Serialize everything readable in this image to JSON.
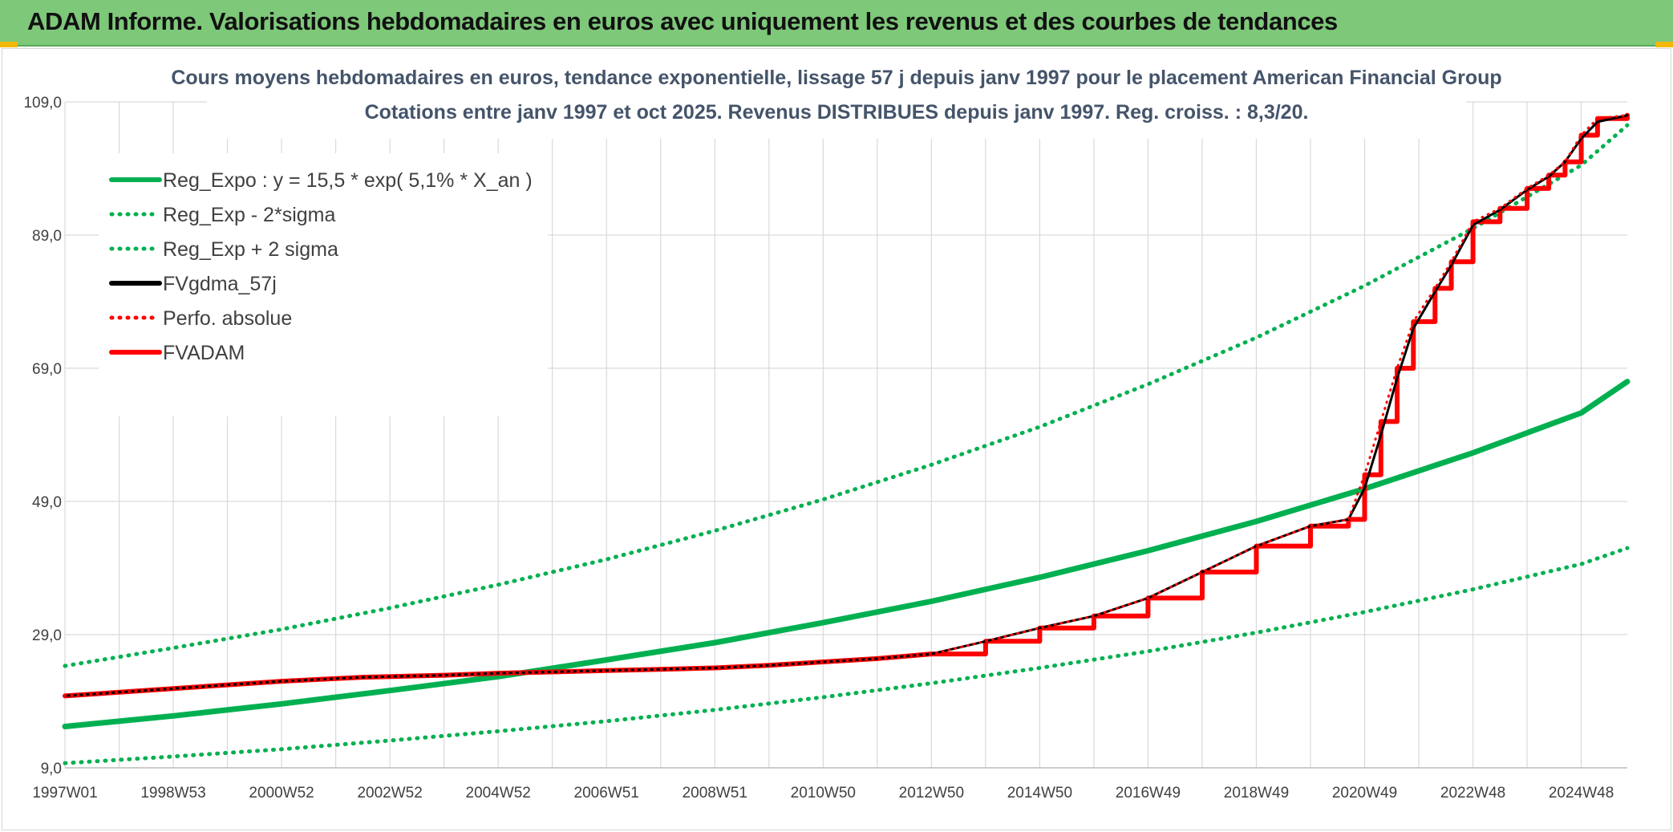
{
  "header": {
    "title": "ADAM Informe. Valorisations hebdomadaires en euros avec uniquement les revenus et des courbes de tendances"
  },
  "colors": {
    "banner": "#7ec87a",
    "green": "#00b050",
    "red": "#ff0000",
    "black": "#000000",
    "grid": "#d9d9d9"
  },
  "chart_data": {
    "type": "line",
    "title_line1": "Cours moyens hebdomadaires en euros, tendance exponentielle, lissage 57 j depuis janv 1997 pour le placement American Financial Group",
    "title_line2": "Cotations entre janv 1997 et oct 2025. Revenus DISTRIBUES depuis janv 1997. Reg. croiss. : 8,3/20.",
    "y_ticks": [
      "109,0",
      "89,0",
      "69,0",
      "49,0",
      "29,0",
      "9,0"
    ],
    "y_tick_values": [
      109,
      89,
      69,
      49,
      29,
      9
    ],
    "ylim": [
      9,
      109
    ],
    "x_ticks": [
      "1997W01",
      "1998W53",
      "2000W52",
      "2002W52",
      "2004W52",
      "2006W51",
      "2008W51",
      "2010W50",
      "2012W50",
      "2014W50",
      "2016W49",
      "2018W49",
      "2020W49",
      "2022W48",
      "2024W48"
    ],
    "x_tick_years": [
      1997,
      1999,
      2001,
      2003,
      2005,
      2007,
      2009,
      2011,
      2013,
      2015,
      2017,
      2019,
      2021,
      2023,
      2025
    ],
    "xlim": [
      1997,
      2025.85
    ],
    "legend": [
      {
        "label": "Reg_Expo : y = 15,5 * exp( 5,1% *  X_an )",
        "color": "#00b050",
        "style": "solid"
      },
      {
        "label": "Reg_Exp - 2*sigma",
        "color": "#00b050",
        "style": "dotted"
      },
      {
        "label": "Reg_Exp + 2 sigma",
        "color": "#00b050",
        "style": "dotted"
      },
      {
        "label": "FVgdma_57j",
        "color": "#000000",
        "style": "solid"
      },
      {
        "label": "Perfo. absolue",
        "color": "#ff0000",
        "style": "dotted"
      },
      {
        "label": "FVADAM",
        "color": "#ff0000",
        "style": "solid"
      }
    ],
    "series": [
      {
        "name": "Reg_Expo",
        "x": [
          1997,
          1999,
          2001,
          2003,
          2005,
          2007,
          2009,
          2011,
          2013,
          2015,
          2017,
          2019,
          2021,
          2023,
          2025,
          2025.85
        ],
        "values": [
          15.2,
          16.8,
          18.6,
          20.6,
          22.7,
          25.2,
          27.8,
          30.8,
          34.0,
          37.6,
          41.6,
          46.0,
          50.9,
          56.3,
          62.3,
          67.0
        ]
      },
      {
        "name": "Reg_Exp - 2*sigma",
        "x": [
          1997,
          1999,
          2001,
          2003,
          2005,
          2007,
          2009,
          2011,
          2013,
          2015,
          2017,
          2019,
          2021,
          2023,
          2025,
          2025.85
        ],
        "values": [
          9.7,
          10.7,
          11.8,
          13.1,
          14.5,
          16.0,
          17.7,
          19.6,
          21.7,
          24.0,
          26.5,
          29.3,
          32.4,
          35.8,
          39.6,
          42.0
        ]
      },
      {
        "name": "Reg_Exp + 2 sigma",
        "x": [
          1997,
          1999,
          2001,
          2003,
          2005,
          2007,
          2009,
          2011,
          2013,
          2015,
          2017,
          2019,
          2021,
          2023,
          2025,
          2025.85
        ],
        "values": [
          24.3,
          27.0,
          29.8,
          33.0,
          36.5,
          40.3,
          44.6,
          49.3,
          54.5,
          60.2,
          66.6,
          73.6,
          81.4,
          90.0,
          99.5,
          105.5
        ]
      },
      {
        "name": "FVADAM",
        "x": [
          1997,
          1999,
          2001,
          2002.5,
          2004,
          2005,
          2006,
          2007,
          2008,
          2009,
          2010,
          2011,
          2012,
          2013,
          2014,
          2015,
          2016,
          2017,
          2018,
          2019,
          2020,
          2020.7,
          2021,
          2021.3,
          2021.6,
          2021.9,
          2022.3,
          2022.6,
          2023,
          2023.5,
          2024,
          2024.4,
          2024.7,
          2025,
          2025.3,
          2025.85
        ],
        "values": [
          19.8,
          20.9,
          22.0,
          22.6,
          22.9,
          23.2,
          23.4,
          23.6,
          23.8,
          24.0,
          24.4,
          24.9,
          25.4,
          26.1,
          28.0,
          30.0,
          31.8,
          34.5,
          38.4,
          42.3,
          45.3,
          46.3,
          53.0,
          61.0,
          69.0,
          76.0,
          81.0,
          85.0,
          91.0,
          93.0,
          96.0,
          98.0,
          100.0,
          104.0,
          106.5,
          107.0
        ]
      },
      {
        "name": "FVgdma_57j",
        "x": [
          1997,
          1999,
          2001,
          2002.5,
          2004,
          2005,
          2006,
          2007,
          2008,
          2009,
          2010,
          2011,
          2012,
          2013,
          2014,
          2015,
          2016,
          2017,
          2018,
          2019,
          2020,
          2020.7,
          2021,
          2021.3,
          2021.6,
          2021.9,
          2022.3,
          2022.6,
          2023,
          2023.5,
          2024,
          2024.4,
          2024.7,
          2025,
          2025.3,
          2025.85
        ],
        "values": [
          19.8,
          20.9,
          22.0,
          22.6,
          22.9,
          23.2,
          23.4,
          23.6,
          23.8,
          24.0,
          24.4,
          24.9,
          25.4,
          26.1,
          28.0,
          30.0,
          31.8,
          34.5,
          38.4,
          42.3,
          45.3,
          46.3,
          51.0,
          59.0,
          67.5,
          75.0,
          80.5,
          84.5,
          90.5,
          92.8,
          95.8,
          97.8,
          100.0,
          103.5,
          106.0,
          107.0
        ]
      },
      {
        "name": "Perfo. absolue",
        "x": [
          1997,
          1999,
          2001,
          2002.5,
          2004,
          2005,
          2006,
          2007,
          2008,
          2009,
          2010,
          2011,
          2012,
          2013,
          2014,
          2015,
          2016,
          2017,
          2018,
          2019,
          2020,
          2020.7,
          2021,
          2021.3,
          2021.6,
          2021.9,
          2022.3,
          2022.6,
          2023,
          2023.5,
          2024,
          2024.4,
          2024.7,
          2025,
          2025.3,
          2025.85
        ],
        "values": [
          19.8,
          20.9,
          22.0,
          22.6,
          22.9,
          23.2,
          23.4,
          23.6,
          23.8,
          24.0,
          24.4,
          24.9,
          25.4,
          26.1,
          28.0,
          30.0,
          31.8,
          34.5,
          38.4,
          42.3,
          45.3,
          46.3,
          53.0,
          61.0,
          69.0,
          76.0,
          81.0,
          85.0,
          91.0,
          93.0,
          96.0,
          98.0,
          100.0,
          104.0,
          106.5,
          107.0
        ]
      }
    ]
  }
}
